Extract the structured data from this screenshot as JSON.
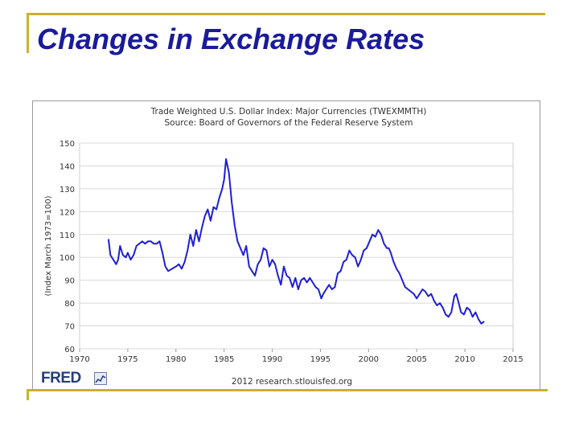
{
  "slide": {
    "title": "Changes in Exchange Rates"
  },
  "branding": {
    "logo_text": "FRED",
    "logo_icon": "trend-chart-icon",
    "accent_color": "#c9b22b",
    "title_color": "#1a1a9c",
    "line_color": "#1f1fd6"
  },
  "chart_data": {
    "type": "line",
    "title": "Trade Weighted U.S. Dollar Index: Major Currencies (TWEXMMTH)",
    "subtitle": "Source: Board of Governors of the Federal Reserve System",
    "xlabel": "",
    "ylabel": "(Index March 1973=100)",
    "footer": "2012 research.stlouisfed.org",
    "xlim": [
      1970,
      2015
    ],
    "ylim": [
      60,
      150
    ],
    "x_ticks": [
      "1970",
      "1975",
      "1980",
      "1985",
      "1990",
      "1995",
      "2000",
      "2005",
      "2010",
      "2015"
    ],
    "y_ticks": [
      "60",
      "70",
      "80",
      "90",
      "100",
      "110",
      "120",
      "130",
      "140",
      "150"
    ],
    "grid": true,
    "series": [
      {
        "name": "TWEXMMTH",
        "x": [
          1973.0,
          1973.2,
          1973.5,
          1973.8,
          1974.0,
          1974.2,
          1974.5,
          1974.8,
          1975.0,
          1975.3,
          1975.6,
          1975.9,
          1976.2,
          1976.5,
          1976.8,
          1977.1,
          1977.4,
          1977.7,
          1978.0,
          1978.3,
          1978.6,
          1978.9,
          1979.2,
          1979.6,
          1980.0,
          1980.3,
          1980.6,
          1980.9,
          1981.2,
          1981.5,
          1981.8,
          1982.1,
          1982.4,
          1982.7,
          1983.0,
          1983.3,
          1983.6,
          1983.9,
          1984.2,
          1984.5,
          1984.8,
          1985.0,
          1985.2,
          1985.5,
          1985.8,
          1986.1,
          1986.4,
          1986.7,
          1987.0,
          1987.3,
          1987.6,
          1987.9,
          1988.2,
          1988.5,
          1988.8,
          1989.1,
          1989.4,
          1989.7,
          1990.0,
          1990.3,
          1990.6,
          1990.9,
          1991.2,
          1991.5,
          1991.8,
          1992.1,
          1992.4,
          1992.7,
          1993.0,
          1993.3,
          1993.6,
          1993.9,
          1994.2,
          1994.5,
          1994.8,
          1995.1,
          1995.3,
          1995.6,
          1995.9,
          1996.2,
          1996.5,
          1996.8,
          1997.1,
          1997.4,
          1997.7,
          1998.0,
          1998.3,
          1998.6,
          1998.9,
          1999.2,
          1999.5,
          1999.8,
          2000.1,
          2000.4,
          2000.7,
          2001.0,
          2001.3,
          2001.6,
          2001.9,
          2002.1,
          2002.3,
          2002.6,
          2002.9,
          2003.2,
          2003.5,
          2003.8,
          2004.1,
          2004.4,
          2004.7,
          2005.0,
          2005.3,
          2005.6,
          2005.9,
          2006.2,
          2006.5,
          2006.8,
          2007.1,
          2007.4,
          2007.7,
          2008.0,
          2008.3,
          2008.6,
          2008.9,
          2009.1,
          2009.3,
          2009.6,
          2009.9,
          2010.2,
          2010.5,
          2010.8,
          2011.1,
          2011.4,
          2011.7,
          2012.0
        ],
        "values": [
          108,
          101,
          99,
          97,
          99,
          105,
          101,
          100,
          102,
          99,
          101,
          105,
          106,
          107,
          106,
          107,
          107,
          106,
          106,
          107,
          102,
          96,
          94,
          95,
          96,
          97,
          95,
          98,
          103,
          110,
          105,
          112,
          107,
          113,
          118,
          121,
          116,
          122,
          121,
          126,
          130,
          134,
          143,
          137,
          124,
          114,
          107,
          104,
          101,
          105,
          96,
          94,
          92,
          97,
          99,
          104,
          103,
          96,
          99,
          97,
          92,
          88,
          96,
          92,
          91,
          87,
          91,
          86,
          90,
          91,
          89,
          91,
          89,
          87,
          86,
          82,
          84,
          86,
          88,
          86,
          87,
          93,
          94,
          98,
          99,
          103,
          101,
          100,
          96,
          99,
          103,
          104,
          107,
          110,
          109,
          112,
          110,
          106,
          104,
          104,
          102,
          98,
          95,
          93,
          90,
          87,
          86,
          85,
          84,
          82,
          84,
          86,
          85,
          83,
          84,
          81,
          79,
          80,
          78,
          75,
          74,
          76,
          83,
          84,
          81,
          76,
          75,
          78,
          77,
          74,
          76,
          73,
          71,
          72
        ]
      }
    ]
  }
}
